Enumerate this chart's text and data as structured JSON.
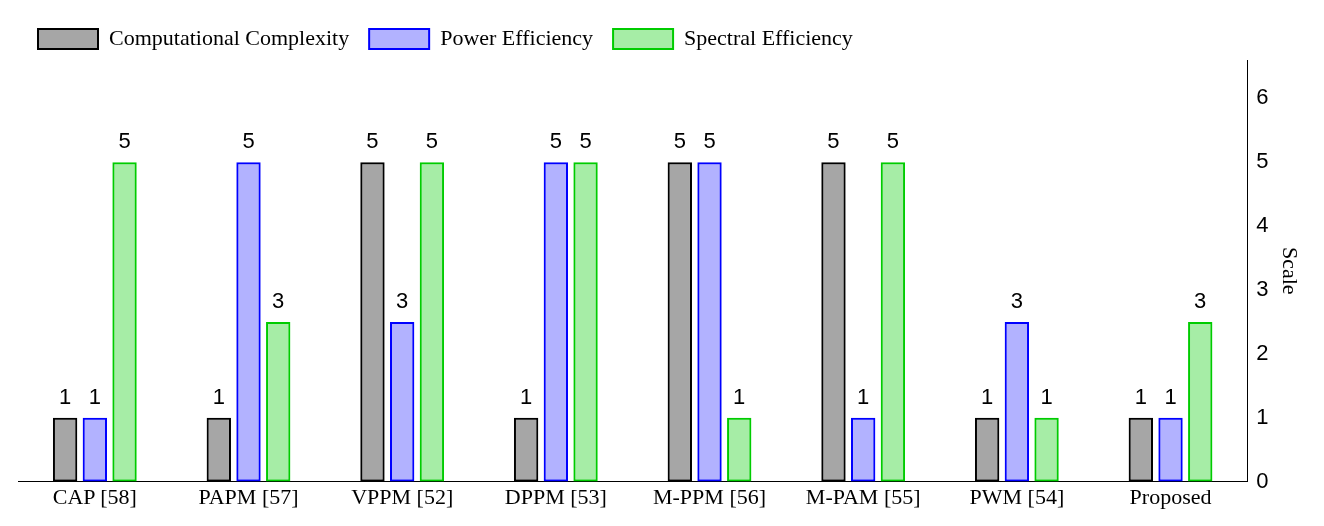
{
  "chart_data": {
    "type": "bar",
    "ylabel": "Scale",
    "categories": [
      "CAP [58]",
      "PAPM [57]",
      "VPPM [52]",
      "DPPM [53]",
      "M-PPM [56]",
      "M-PAM [55]",
      "PWM [54]",
      "Proposed"
    ],
    "series": [
      {
        "name": "Computational Complexity",
        "color": "#000000",
        "values": [
          1,
          1,
          5,
          1,
          5,
          5,
          1,
          1
        ],
        "value_labels": [
          "1",
          "1",
          "5",
          "1",
          "5",
          "5",
          "1",
          "1"
        ]
      },
      {
        "name": "Power Efficiency",
        "color": "#0000ff",
        "values": [
          1,
          5,
          2.5,
          5,
          5,
          1,
          2.5,
          1
        ],
        "value_labels": [
          "1",
          "5",
          "3",
          "5",
          "5",
          "1",
          "3",
          "1"
        ]
      },
      {
        "name": "Spectral Efficiency",
        "color": "#00cc00",
        "values": [
          5,
          2.5,
          5,
          5,
          1,
          5,
          1,
          2.5
        ],
        "value_labels": [
          "5",
          "3",
          "5",
          "5",
          "1",
          "5",
          "1",
          "3"
        ]
      }
    ],
    "ylim": [
      0,
      6.6
    ],
    "yticks": [
      0,
      1,
      2,
      3,
      4,
      5,
      6
    ],
    "grid": false,
    "legend": "top left"
  }
}
